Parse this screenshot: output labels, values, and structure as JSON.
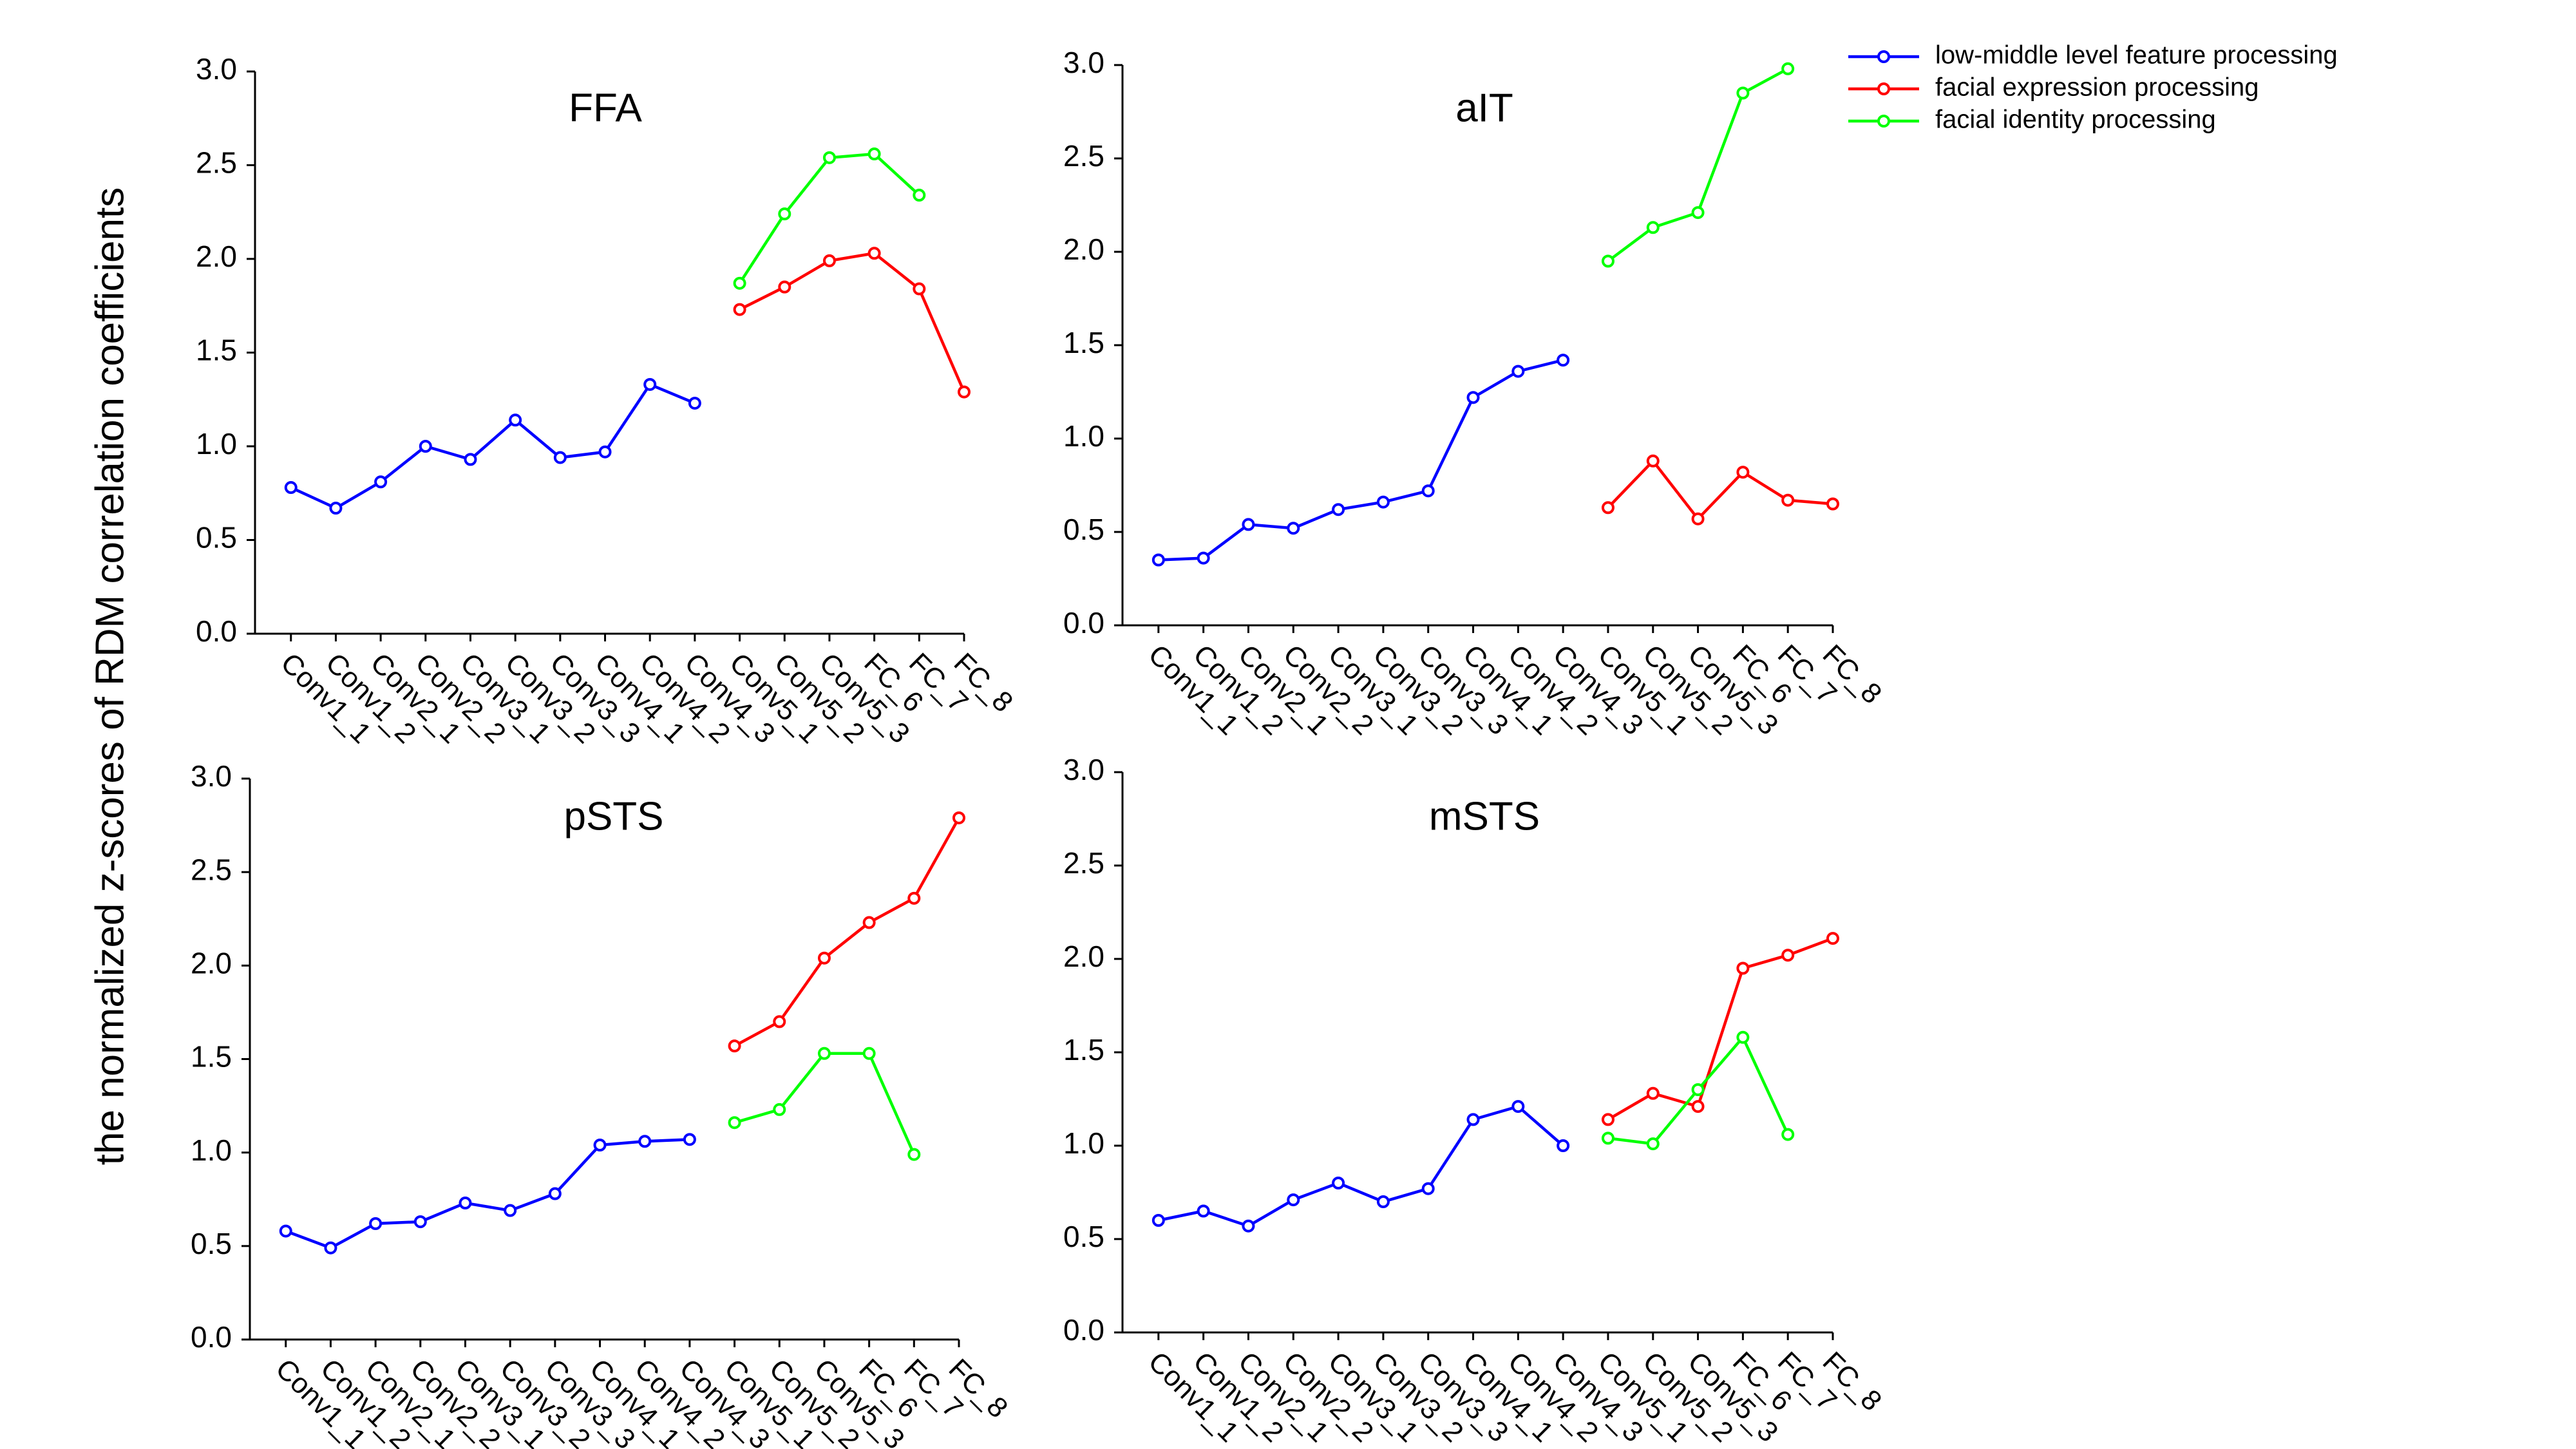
{
  "y_axis_label": "the normalized z-scores of RDM correlation coefficients",
  "chart_data": [
    {
      "type": "line",
      "title": "FFA",
      "categories": [
        "Conv1_1",
        "Conv1_2",
        "Conv2_1",
        "Conv2_2",
        "Conv3_1",
        "Conv3_2",
        "Conv3_3",
        "Conv4_1",
        "Conv4_2",
        "Conv4_3",
        "Conv5_1",
        "Conv5_2",
        "Conv5_3",
        "FC_6",
        "FC_7",
        "FC_8"
      ],
      "series": [
        {
          "name": "low-middle level feature processing",
          "color": "#0000ff",
          "values": [
            0.78,
            0.67,
            0.81,
            1.0,
            0.93,
            1.14,
            0.94,
            0.97,
            1.33,
            1.23,
            null,
            null,
            null,
            null,
            null,
            null
          ]
        },
        {
          "name": "facial expression processing",
          "color": "#ff0000",
          "values": [
            null,
            null,
            null,
            null,
            null,
            null,
            null,
            null,
            null,
            null,
            1.73,
            1.85,
            1.99,
            2.03,
            1.84,
            1.29
          ]
        },
        {
          "name": "facial identity processing",
          "color": "#00ff00",
          "values": [
            null,
            null,
            null,
            null,
            null,
            null,
            null,
            null,
            null,
            null,
            1.87,
            2.24,
            2.54,
            2.56,
            2.34,
            null
          ]
        }
      ],
      "ylim": [
        0,
        3
      ],
      "yticks": [
        {
          "value": 0,
          "label": "0.0"
        },
        {
          "value": 0.5,
          "label": "0.5"
        },
        {
          "value": 1,
          "label": "1.0"
        },
        {
          "value": 1.5,
          "label": "1.5"
        },
        {
          "value": 2,
          "label": "2.0"
        },
        {
          "value": 2.5,
          "label": "2.5"
        },
        {
          "value": 3,
          "label": "3.0"
        }
      ]
    },
    {
      "type": "line",
      "title": "aIT",
      "categories": [
        "Conv1_1",
        "Conv1_2",
        "Conv2_1",
        "Conv2_2",
        "Conv3_1",
        "Conv3_2",
        "Conv3_3",
        "Conv4_1",
        "Conv4_2",
        "Conv4_3",
        "Conv5_1",
        "Conv5_2",
        "Conv5_3",
        "FC_6",
        "FC_7",
        "FC_8"
      ],
      "series": [
        {
          "name": "low-middle level feature processing",
          "color": "#0000ff",
          "values": [
            0.35,
            0.36,
            0.54,
            0.52,
            0.62,
            0.66,
            0.72,
            1.22,
            1.36,
            1.42,
            null,
            null,
            null,
            null,
            null,
            null
          ]
        },
        {
          "name": "facial expression processing",
          "color": "#ff0000",
          "values": [
            null,
            null,
            null,
            null,
            null,
            null,
            null,
            null,
            null,
            null,
            0.63,
            0.88,
            0.57,
            0.82,
            0.67,
            0.65
          ]
        },
        {
          "name": "facial identity processing",
          "color": "#00ff00",
          "values": [
            null,
            null,
            null,
            null,
            null,
            null,
            null,
            null,
            null,
            null,
            1.95,
            2.13,
            2.21,
            2.85,
            2.98,
            null
          ]
        }
      ],
      "ylim": [
        0,
        3
      ],
      "yticks": [
        {
          "value": 0,
          "label": "0.0"
        },
        {
          "value": 0.5,
          "label": "0.5"
        },
        {
          "value": 1,
          "label": "1.0"
        },
        {
          "value": 1.5,
          "label": "1.5"
        },
        {
          "value": 2,
          "label": "2.0"
        },
        {
          "value": 2.5,
          "label": "2.5"
        },
        {
          "value": 3,
          "label": "3.0"
        }
      ]
    },
    {
      "type": "line",
      "title": "pSTS",
      "categories": [
        "Conv1_1",
        "Conv1_2",
        "Conv2_1",
        "Conv2_2",
        "Conv3_1",
        "Conv3_2",
        "Conv3_3",
        "Conv4_1",
        "Conv4_2",
        "Conv4_3",
        "Conv5_1",
        "Conv5_2",
        "Conv5_3",
        "FC_6",
        "FC_7",
        "FC_8"
      ],
      "series": [
        {
          "name": "low-middle level feature processing",
          "color": "#0000ff",
          "values": [
            0.58,
            0.49,
            0.62,
            0.63,
            0.73,
            0.69,
            0.78,
            1.04,
            1.06,
            1.07,
            null,
            null,
            null,
            null,
            null,
            null
          ]
        },
        {
          "name": "facial expression processing",
          "color": "#ff0000",
          "values": [
            null,
            null,
            null,
            null,
            null,
            null,
            null,
            null,
            null,
            null,
            1.57,
            1.7,
            2.04,
            2.23,
            2.36,
            2.79
          ]
        },
        {
          "name": "facial identity processing",
          "color": "#00ff00",
          "values": [
            null,
            null,
            null,
            null,
            null,
            null,
            null,
            null,
            null,
            null,
            1.16,
            1.23,
            1.53,
            1.53,
            0.99,
            null
          ]
        }
      ],
      "ylim": [
        0,
        3
      ],
      "yticks": [
        {
          "value": 0,
          "label": "0.0"
        },
        {
          "value": 0.5,
          "label": "0.5"
        },
        {
          "value": 1,
          "label": "1.0"
        },
        {
          "value": 1.5,
          "label": "1.5"
        },
        {
          "value": 2,
          "label": "2.0"
        },
        {
          "value": 2.5,
          "label": "2.5"
        },
        {
          "value": 3,
          "label": "3.0"
        }
      ]
    },
    {
      "type": "line",
      "title": "mSTS",
      "categories": [
        "Conv1_1",
        "Conv1_2",
        "Conv2_1",
        "Conv2_2",
        "Conv3_1",
        "Conv3_2",
        "Conv3_3",
        "Conv4_1",
        "Conv4_2",
        "Conv4_3",
        "Conv5_1",
        "Conv5_2",
        "Conv5_3",
        "FC_6",
        "FC_7",
        "FC_8"
      ],
      "series": [
        {
          "name": "low-middle level feature processing",
          "color": "#0000ff",
          "values": [
            0.6,
            0.65,
            0.57,
            0.71,
            0.8,
            0.7,
            0.77,
            1.14,
            1.21,
            1.0,
            null,
            null,
            null,
            null,
            null,
            null
          ]
        },
        {
          "name": "facial expression processing",
          "color": "#ff0000",
          "values": [
            null,
            null,
            null,
            null,
            null,
            null,
            null,
            null,
            null,
            null,
            1.14,
            1.28,
            1.21,
            1.95,
            2.02,
            2.11
          ]
        },
        {
          "name": "facial identity processing",
          "color": "#00ff00",
          "values": [
            null,
            null,
            null,
            null,
            null,
            null,
            null,
            null,
            null,
            null,
            1.04,
            1.01,
            1.3,
            1.58,
            1.06,
            null
          ]
        }
      ],
      "ylim": [
        0,
        3
      ],
      "yticks": [
        {
          "value": 0,
          "label": "0.0"
        },
        {
          "value": 0.5,
          "label": "0.5"
        },
        {
          "value": 1,
          "label": "1.0"
        },
        {
          "value": 1.5,
          "label": "1.5"
        },
        {
          "value": 2,
          "label": "2.0"
        },
        {
          "value": 2.5,
          "label": "2.5"
        },
        {
          "value": 3,
          "label": "3.0"
        }
      ]
    }
  ]
}
